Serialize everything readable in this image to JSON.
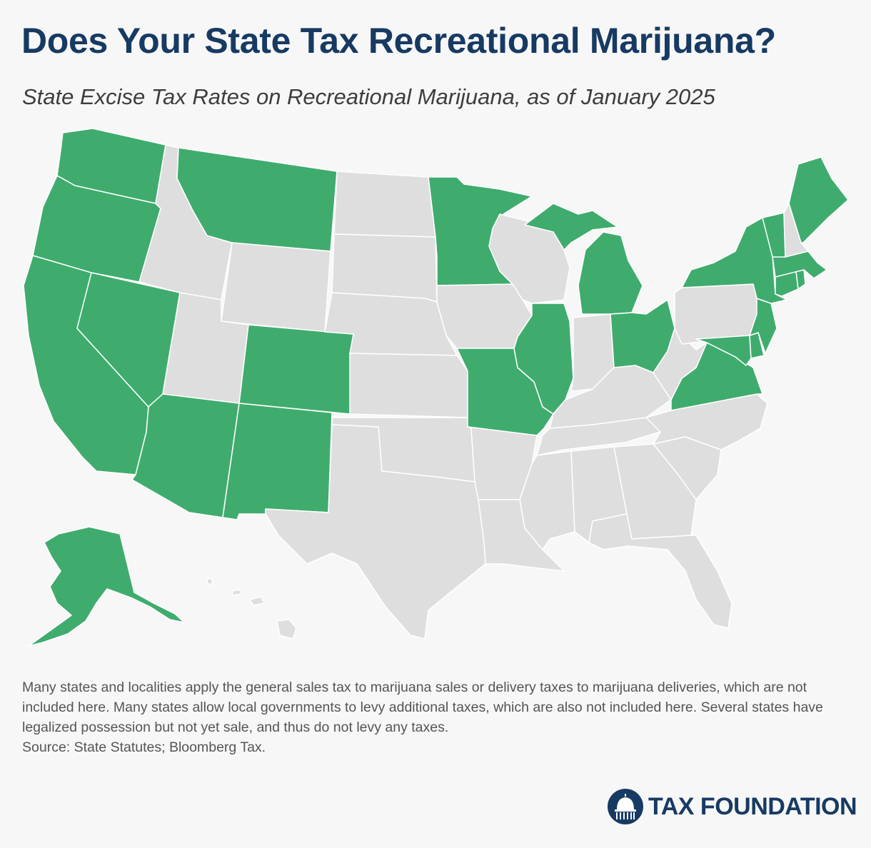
{
  "header": {
    "title": "Does Your State Tax Recreational Marijuana?",
    "subtitle": "State Excise Tax Rates on Recreational Marijuana, as of January 2025"
  },
  "legend_colors": {
    "taxes_recreational_marijuana": "#3fac6e",
    "no_tax": "#dedede",
    "border": "#ffffff",
    "title": "#173a63"
  },
  "map": {
    "states_with_excise_tax": [
      "WA",
      "OR",
      "CA",
      "NV",
      "AZ",
      "NM",
      "CO",
      "MT",
      "MN",
      "MO",
      "IL",
      "MI",
      "OH",
      "NY",
      "VT",
      "ME",
      "MA",
      "CT",
      "RI",
      "NJ",
      "DE",
      "MD",
      "VA",
      "AK"
    ],
    "states_without_excise_tax": [
      "ID",
      "UT",
      "WY",
      "ND",
      "SD",
      "NE",
      "KS",
      "OK",
      "TX",
      "IA",
      "AR",
      "LA",
      "WI",
      "IN",
      "KY",
      "TN",
      "MS",
      "AL",
      "GA",
      "FL",
      "SC",
      "NC",
      "WV",
      "PA",
      "NH",
      "HI"
    ]
  },
  "notes": {
    "body": "Many states and localities apply the general sales tax to marijuana sales or delivery taxes to marijuana deliveries, which are not included here. Many states allow local governments to levy additional taxes, which are also not included here. Several states have legalized possession but not yet sale, and thus do not levy any taxes.",
    "source": "Source: State Statutes; Bloomberg Tax."
  },
  "brand": {
    "name": "TAX FOUNDATION",
    "icon": "capitol-dome-icon"
  }
}
